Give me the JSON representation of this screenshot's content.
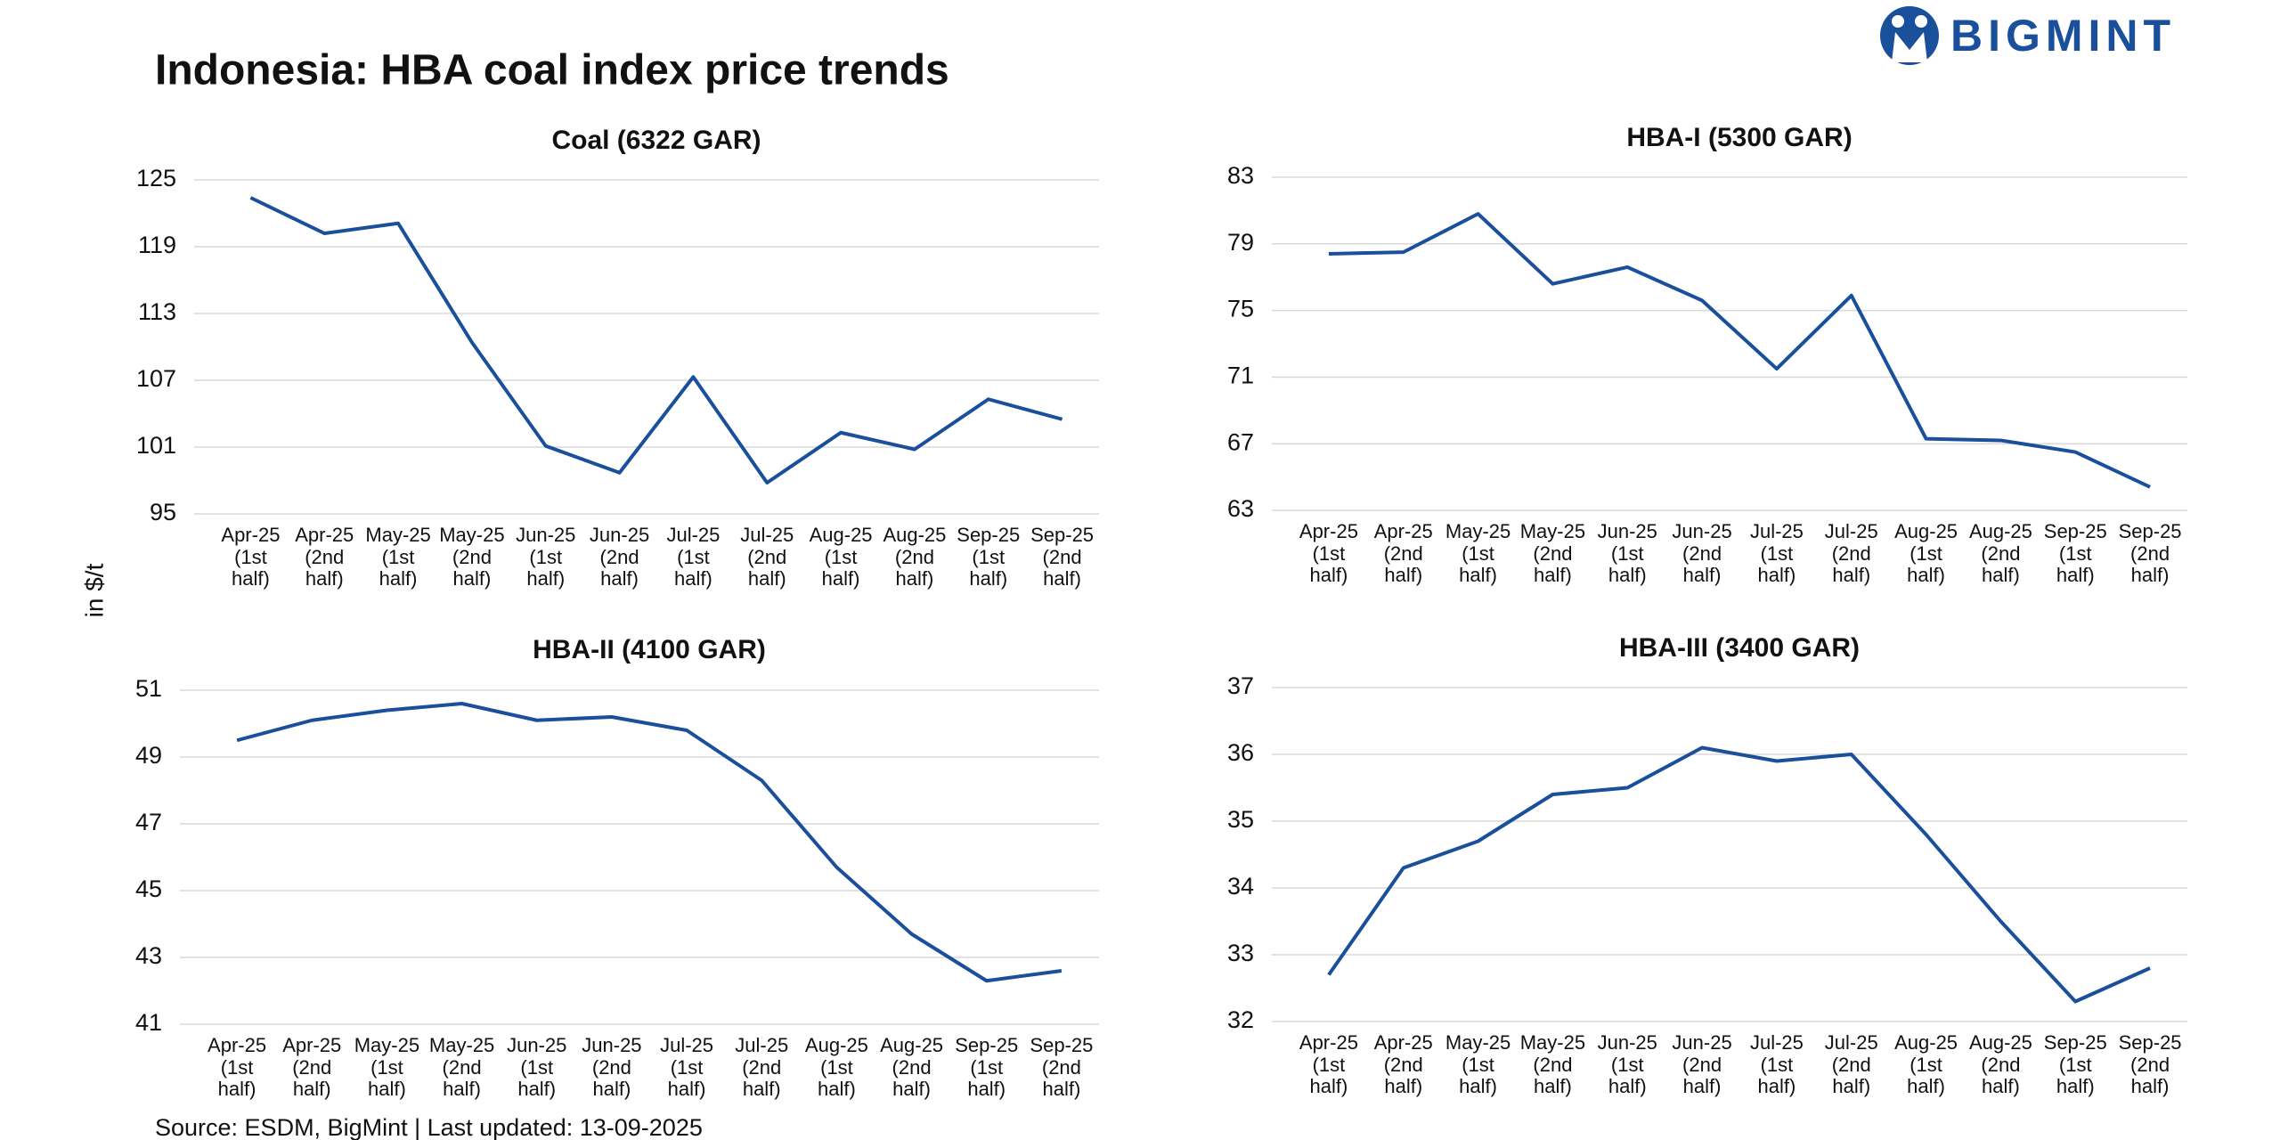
{
  "title": "Indonesia: HBA coal index price trends",
  "logo": "BIGMINT",
  "y_label": "in $/t",
  "source": "Source: ESDM, BigMint | Last updated: 13-09-2025",
  "chart_data": [
    {
      "type": "line",
      "title": "Coal (6322 GAR)",
      "categories": [
        "Apr-25 (1st half)",
        "Apr-25 (2nd half)",
        "May-25 (1st half)",
        "May-25 (2nd half)",
        "Jun-25 (1st half)",
        "Jun-25 (2nd half)",
        "Jul-25 (1st half)",
        "Jul-25 (2nd half)",
        "Aug-25 (1st half)",
        "Aug-25 (2nd half)",
        "Sep-25 (1st half)",
        "Sep-25 (2nd half)"
      ],
      "values": [
        123.4,
        120.2,
        121.1,
        110.4,
        101.1,
        98.7,
        107.3,
        97.8,
        102.3,
        100.8,
        105.3,
        103.5
      ],
      "color": "#1a4f9c",
      "ylim": [
        95,
        125
      ],
      "yticks": [
        95,
        101,
        107,
        113,
        119,
        125
      ],
      "grid": true
    },
    {
      "type": "line",
      "title": "HBA-I (5300 GAR)",
      "categories": [
        "Apr-25 (1st half)",
        "Apr-25 (2nd half)",
        "May-25 (1st half)",
        "May-25 (2nd half)",
        "Jun-25 (1st half)",
        "Jun-25 (2nd half)",
        "Jul-25 (1st half)",
        "Jul-25 (2nd half)",
        "Aug-25 (1st half)",
        "Aug-25 (2nd half)",
        "Sep-25 (1st half)",
        "Sep-25 (2nd half)"
      ],
      "values": [
        78.4,
        78.5,
        80.8,
        76.6,
        77.6,
        75.6,
        71.5,
        75.9,
        67.3,
        67.2,
        66.5,
        64.4
      ],
      "color": "#1a4f9c",
      "ylim": [
        63,
        83
      ],
      "yticks": [
        63,
        67,
        71,
        75,
        79,
        83
      ],
      "grid": true
    },
    {
      "type": "line",
      "title": "HBA-II (4100 GAR)",
      "categories": [
        "Apr-25 (1st half)",
        "Apr-25 (2nd half)",
        "May-25 (1st half)",
        "May-25 (2nd half)",
        "Jun-25 (1st half)",
        "Jun-25 (2nd half)",
        "Jul-25 (1st half)",
        "Jul-25 (2nd half)",
        "Aug-25 (1st half)",
        "Aug-25 (2nd half)",
        "Sep-25 (1st half)",
        "Sep-25 (2nd half)"
      ],
      "values": [
        49.5,
        50.1,
        50.4,
        50.6,
        50.1,
        50.2,
        49.8,
        48.3,
        45.7,
        43.7,
        42.3,
        42.6
      ],
      "color": "#1a4f9c",
      "ylim": [
        41,
        51
      ],
      "yticks": [
        41,
        43,
        45,
        47,
        49,
        51
      ],
      "grid": true
    },
    {
      "type": "line",
      "title": "HBA-III (3400 GAR)",
      "categories": [
        "Apr-25 (1st half)",
        "Apr-25 (2nd half)",
        "May-25 (1st half)",
        "May-25 (2nd half)",
        "Jun-25 (1st half)",
        "Jun-25 (2nd half)",
        "Jul-25 (1st half)",
        "Jul-25 (2nd half)",
        "Aug-25 (1st half)",
        "Aug-25 (2nd half)",
        "Sep-25 (1st half)",
        "Sep-25 (2nd half)"
      ],
      "values": [
        32.7,
        34.3,
        34.7,
        35.4,
        35.5,
        36.1,
        35.9,
        36.0,
        34.8,
        33.5,
        32.3,
        32.8
      ],
      "color": "#1a4f9c",
      "ylim": [
        32,
        37
      ],
      "yticks": [
        32,
        33,
        34,
        35,
        36,
        37
      ],
      "grid": true
    }
  ]
}
